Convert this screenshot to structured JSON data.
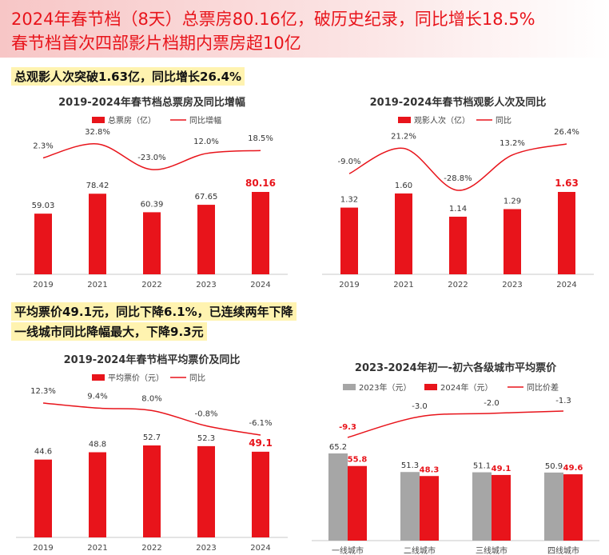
{
  "header": {
    "line1": "2024年春节档（8天）总票房80.16亿，破历史纪录，同比增长18.5%",
    "line2": "春节档首次四部影片档期内票房超10亿"
  },
  "highlights": {
    "audience": "总观影人次突破1.63亿，同比增长26.4%",
    "price_line1": "平均票价49.1元，同比下降6.1%，已连续两年下降",
    "price_line2": "一线城市同比降幅最大，下降9.3元"
  },
  "colors": {
    "bar": "#e8141b",
    "gray": "#a6a6a6",
    "line": "#e8141b",
    "accent": "#e8141b"
  },
  "chart_data": [
    {
      "type": "bar",
      "title": "2019-2024年春节档总票房及同比增幅",
      "categories": [
        "2019",
        "2021",
        "2022",
        "2023",
        "2024"
      ],
      "series": [
        {
          "name": "总票房（亿）",
          "values": [
            59.03,
            78.42,
            60.39,
            67.65,
            80.16
          ]
        },
        {
          "name": "同比增幅",
          "type": "line",
          "values": [
            2.3,
            32.8,
            -23.0,
            12.0,
            18.5
          ],
          "labels": [
            "2.3%",
            "32.8%",
            "-23.0%",
            "12.0%",
            "18.5%"
          ]
        }
      ],
      "bar_labels": [
        "59.03",
        "78.42",
        "60.39",
        "67.65",
        "80.16"
      ],
      "highlight_last": true
    },
    {
      "type": "bar",
      "title": "2019-2024年春节档观影人次及同比",
      "categories": [
        "2019",
        "2021",
        "2022",
        "2023",
        "2024"
      ],
      "series": [
        {
          "name": "观影人次（亿）",
          "values": [
            1.32,
            1.6,
            1.14,
            1.29,
            1.63
          ]
        },
        {
          "name": "同比",
          "type": "line",
          "values": [
            -9.0,
            21.2,
            -28.8,
            13.2,
            26.4
          ],
          "labels": [
            "-9.0%",
            "21.2%",
            "-28.8%",
            "13.2%",
            "26.4%"
          ]
        }
      ],
      "bar_labels": [
        "1.32",
        "1.60",
        "1.14",
        "1.29",
        "1.63"
      ],
      "highlight_last": true
    },
    {
      "type": "bar",
      "title": "2019-2024年春节档平均票价及同比",
      "categories": [
        "2019",
        "2021",
        "2022",
        "2023",
        "2024"
      ],
      "series": [
        {
          "name": "平均票价（元）",
          "values": [
            44.6,
            48.8,
            52.7,
            52.3,
            49.1
          ]
        },
        {
          "name": "同比",
          "type": "line",
          "values": [
            12.3,
            9.4,
            8.0,
            -0.8,
            -6.1
          ],
          "labels": [
            "12.3%",
            "9.4%",
            "8.0%",
            "-0.8%",
            "-6.1%"
          ]
        }
      ],
      "bar_labels": [
        "44.6",
        "48.8",
        "52.7",
        "52.3",
        "49.1"
      ],
      "highlight_last": true
    },
    {
      "type": "bar",
      "title": "2023-2024年初一-初六各级城市平均票价",
      "categories": [
        "一线城市",
        "二线城市",
        "三线城市",
        "四线城市"
      ],
      "series": [
        {
          "name": "2023年（元）",
          "values": [
            65.2,
            51.3,
            51.1,
            50.9
          ]
        },
        {
          "name": "2024年（元）",
          "values": [
            55.8,
            48.3,
            49.1,
            49.6
          ]
        },
        {
          "name": "同比价差",
          "type": "line",
          "values": [
            -9.3,
            -3.0,
            -2.0,
            -1.3
          ],
          "labels": [
            "-9.3",
            "-3.0",
            "-2.0",
            "-1.3"
          ]
        }
      ]
    }
  ]
}
